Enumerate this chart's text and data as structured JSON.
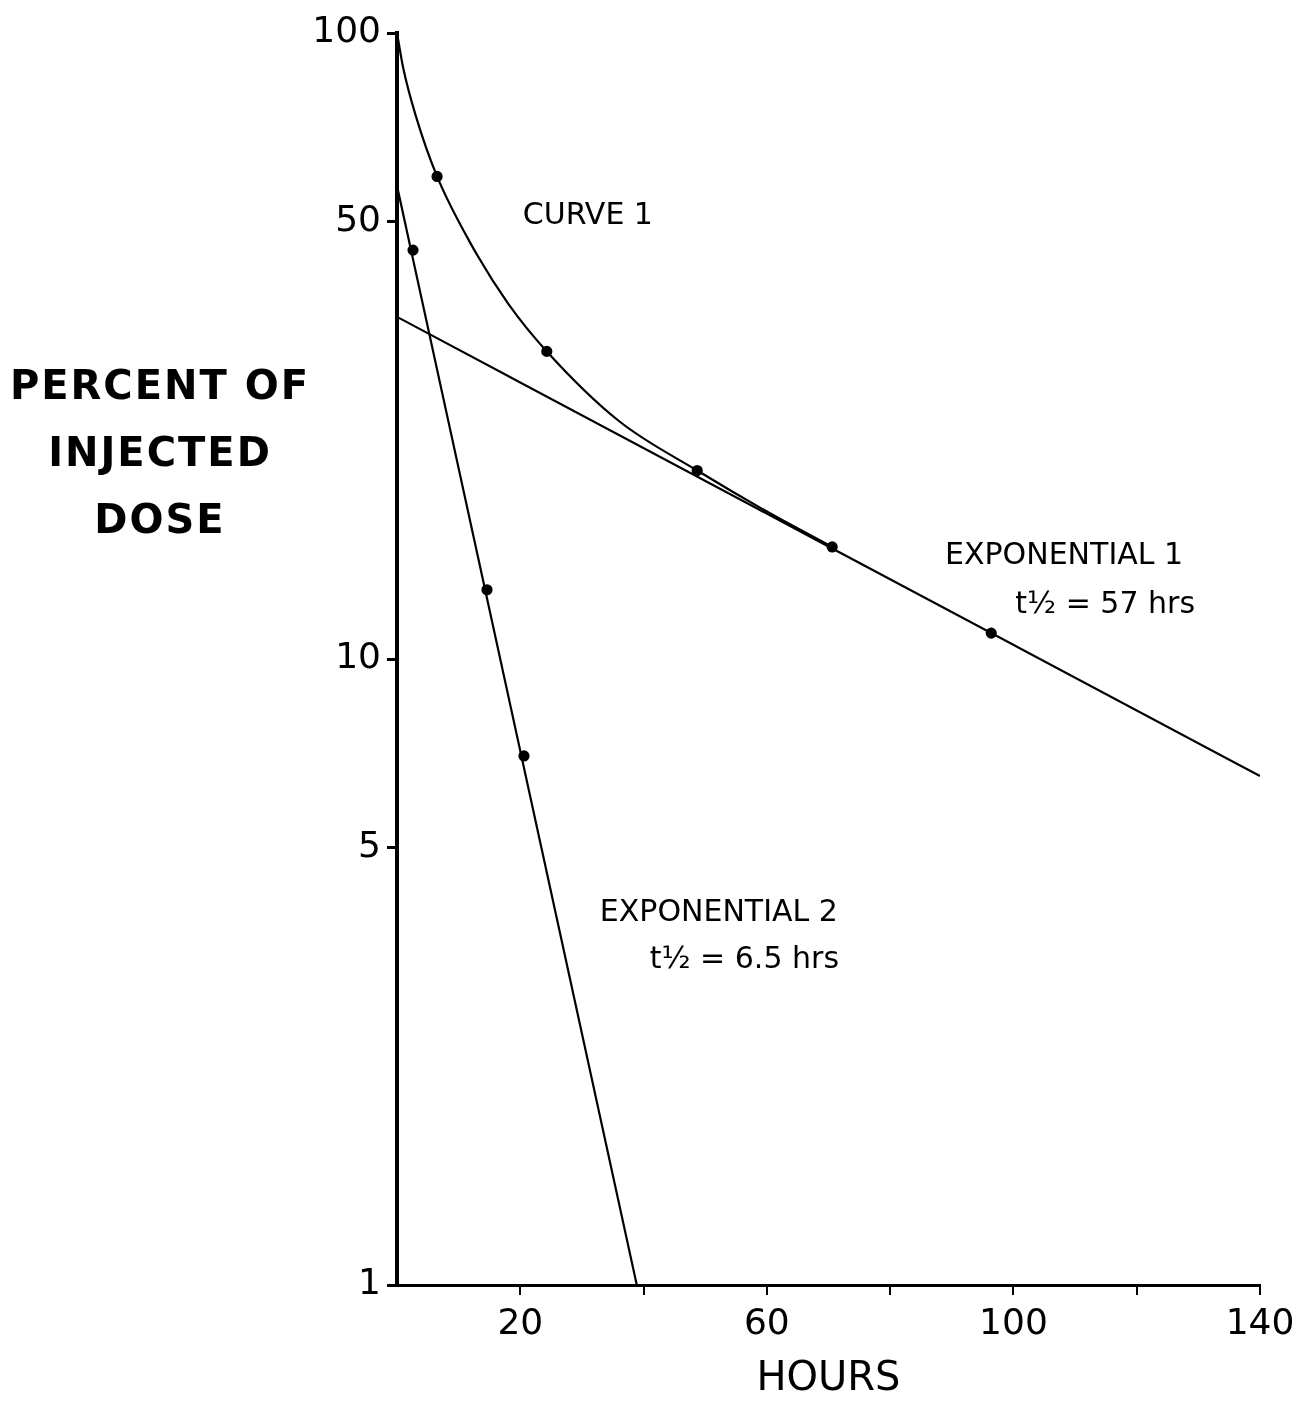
{
  "chart_data": {
    "type": "line",
    "xlabel": "HOURS",
    "ylabel": "PERCENT OF INJECTED DOSE",
    "log": "y",
    "xlim": [
      0,
      140
    ],
    "ylim": [
      1,
      100
    ],
    "xticks": [
      {
        "value": 20,
        "label": "20"
      },
      {
        "value": 40,
        "label": null
      },
      {
        "value": 60,
        "label": "60"
      },
      {
        "value": 80,
        "label": null
      },
      {
        "value": 100,
        "label": "100"
      },
      {
        "value": 120,
        "label": null
      },
      {
        "value": 140,
        "label": "140"
      }
    ],
    "yticks": [
      1,
      5,
      10,
      50,
      100
    ],
    "series": [
      {
        "name": "CURVE 1",
        "color": "#000000",
        "marker": "none",
        "x": [
          0,
          1,
          3,
          6.5,
          12,
          18,
          24.3,
          36,
          48.7,
          60,
          70.6
        ],
        "values": [
          100,
          88,
          74,
          59,
          46,
          37,
          31,
          24,
          20,
          17.2,
          15.1
        ]
      },
      {
        "name": "EXPONENTIAL 1",
        "color": "#000000",
        "marker": "none",
        "x": [
          0,
          140
        ],
        "values": [
          35.2,
          6.5
        ]
      },
      {
        "name": "EXPONENTIAL 2",
        "color": "#000000",
        "marker": "none",
        "x": [
          0,
          38.9
        ],
        "values": [
          57,
          1
        ]
      },
      {
        "type": "scatter",
        "color": "#000000",
        "marker": "circle",
        "x": [
          6.5,
          24.3,
          48.7,
          70.6,
          96.4,
          2.6,
          14.6,
          20.6
        ],
        "values": [
          59,
          31,
          20,
          15.1,
          11,
          45,
          12.9,
          7
        ]
      }
    ],
    "annotations": [
      "t½ = 57 hrs",
      "t½ = 6.5 hrs"
    ],
    "legend": false
  }
}
